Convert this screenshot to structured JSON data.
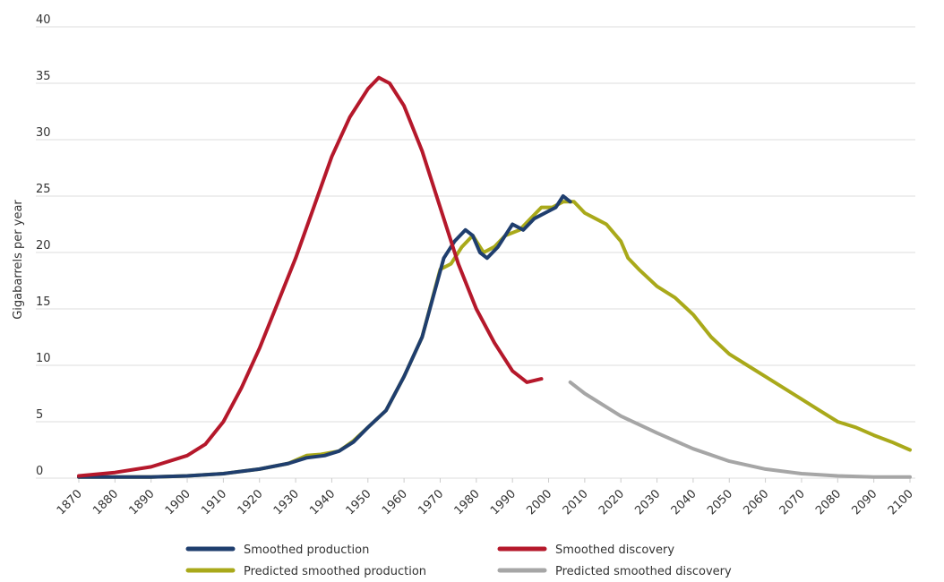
{
  "chart_data": {
    "type": "line",
    "title": "",
    "xlabel": "",
    "ylabel": "Gigabarrels per year",
    "xlim": [
      1870,
      2100
    ],
    "ylim": [
      0,
      40
    ],
    "xticks": [
      "1870",
      "1880",
      "1890",
      "1900",
      "1910",
      "1920",
      "1930",
      "1940",
      "1950",
      "1960",
      "1970",
      "1980",
      "1990",
      "2000",
      "2010",
      "2020",
      "2030",
      "2040",
      "2050",
      "2060",
      "2070",
      "2080",
      "2090",
      "2100"
    ],
    "yticks": [
      "0",
      "5",
      "10",
      "15",
      "20",
      "25",
      "30",
      "35",
      "40"
    ],
    "grid": "horizontal",
    "legend_position": "bottom",
    "series": [
      {
        "name": "Predicted smoothed production",
        "color": "#a9a91a",
        "points": [
          [
            1870,
            0.1
          ],
          [
            1880,
            0.1
          ],
          [
            1890,
            0.1
          ],
          [
            1900,
            0.2
          ],
          [
            1910,
            0.4
          ],
          [
            1920,
            0.8
          ],
          [
            1928,
            1.3
          ],
          [
            1933,
            2.0
          ],
          [
            1937,
            2.1
          ],
          [
            1942,
            2.4
          ],
          [
            1946,
            3.3
          ],
          [
            1950,
            4.5
          ],
          [
            1955,
            6.0
          ],
          [
            1960,
            9.0
          ],
          [
            1965,
            12.5
          ],
          [
            1970,
            18.5
          ],
          [
            1973,
            19.0
          ],
          [
            1976,
            20.5
          ],
          [
            1979,
            21.5
          ],
          [
            1982,
            20.0
          ],
          [
            1985,
            20.5
          ],
          [
            1988,
            21.5
          ],
          [
            1992,
            22.0
          ],
          [
            1995,
            23.0
          ],
          [
            1998,
            24.0
          ],
          [
            2001,
            24.0
          ],
          [
            2004,
            24.5
          ],
          [
            2007,
            24.5
          ],
          [
            2010,
            23.5
          ],
          [
            2013,
            23.0
          ],
          [
            2016,
            22.5
          ],
          [
            2020,
            21.0
          ],
          [
            2022,
            19.5
          ],
          [
            2025,
            18.5
          ],
          [
            2030,
            17.0
          ],
          [
            2035,
            16.0
          ],
          [
            2040,
            14.5
          ],
          [
            2045,
            12.5
          ],
          [
            2050,
            11.0
          ],
          [
            2055,
            10.0
          ],
          [
            2060,
            9.0
          ],
          [
            2065,
            8.0
          ],
          [
            2070,
            7.0
          ],
          [
            2075,
            6.0
          ],
          [
            2080,
            5.0
          ],
          [
            2085,
            4.5
          ],
          [
            2090,
            3.8
          ],
          [
            2095,
            3.2
          ],
          [
            2100,
            2.5
          ]
        ]
      },
      {
        "name": "Smoothed production",
        "color": "#1f3e6e",
        "points": [
          [
            1870,
            0.1
          ],
          [
            1880,
            0.1
          ],
          [
            1890,
            0.1
          ],
          [
            1900,
            0.2
          ],
          [
            1910,
            0.4
          ],
          [
            1920,
            0.8
          ],
          [
            1928,
            1.3
          ],
          [
            1933,
            1.8
          ],
          [
            1938,
            2.0
          ],
          [
            1942,
            2.4
          ],
          [
            1946,
            3.2
          ],
          [
            1950,
            4.5
          ],
          [
            1955,
            6.0
          ],
          [
            1960,
            9.0
          ],
          [
            1965,
            12.5
          ],
          [
            1968,
            16.0
          ],
          [
            1971,
            19.5
          ],
          [
            1974,
            21.0
          ],
          [
            1977,
            22.0
          ],
          [
            1979,
            21.5
          ],
          [
            1981,
            20.0
          ],
          [
            1983,
            19.5
          ],
          [
            1986,
            20.5
          ],
          [
            1988,
            21.5
          ],
          [
            1990,
            22.5
          ],
          [
            1993,
            22.0
          ],
          [
            1996,
            23.0
          ],
          [
            1999,
            23.5
          ],
          [
            2002,
            24.0
          ],
          [
            2004,
            25.0
          ],
          [
            2006,
            24.5
          ]
        ]
      },
      {
        "name": "Smoothed discovery",
        "color": "#b5182b",
        "points": [
          [
            1870,
            0.2
          ],
          [
            1880,
            0.5
          ],
          [
            1890,
            1.0
          ],
          [
            1900,
            2.0
          ],
          [
            1905,
            3.0
          ],
          [
            1910,
            5.0
          ],
          [
            1915,
            8.0
          ],
          [
            1920,
            11.5
          ],
          [
            1925,
            15.5
          ],
          [
            1930,
            19.5
          ],
          [
            1935,
            24.0
          ],
          [
            1940,
            28.5
          ],
          [
            1945,
            32.0
          ],
          [
            1950,
            34.5
          ],
          [
            1953,
            35.5
          ],
          [
            1956,
            35.0
          ],
          [
            1960,
            33.0
          ],
          [
            1965,
            29.0
          ],
          [
            1970,
            24.0
          ],
          [
            1975,
            19.0
          ],
          [
            1980,
            15.0
          ],
          [
            1985,
            12.0
          ],
          [
            1990,
            9.5
          ],
          [
            1994,
            8.5
          ],
          [
            1998,
            8.8
          ]
        ]
      },
      {
        "name": "Predicted smoothed discovery",
        "color": "#a6a6a6",
        "points": [
          [
            2006,
            8.5
          ],
          [
            2010,
            7.5
          ],
          [
            2020,
            5.5
          ],
          [
            2030,
            4.0
          ],
          [
            2040,
            2.6
          ],
          [
            2050,
            1.5
          ],
          [
            2060,
            0.8
          ],
          [
            2070,
            0.4
          ],
          [
            2080,
            0.2
          ],
          [
            2090,
            0.1
          ],
          [
            2100,
            0.1
          ]
        ]
      }
    ]
  }
}
